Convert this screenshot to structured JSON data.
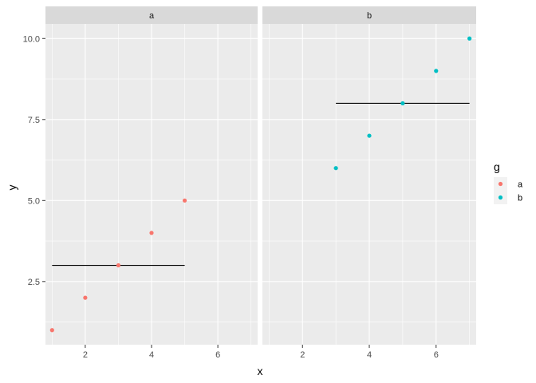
{
  "chart_data": {
    "type": "scatter",
    "xlabel": "x",
    "ylabel": "y",
    "xlim": [
      0.8,
      7.2
    ],
    "ylim": [
      0.55,
      10.45
    ],
    "x_ticks": [
      2,
      4,
      6
    ],
    "y_ticks": [
      2.5,
      5.0,
      7.5,
      10.0
    ],
    "y_tick_labels": [
      "2.5",
      "5.0",
      "7.5",
      "10.0"
    ],
    "grid": true,
    "legend": {
      "title": "g",
      "placement": "right",
      "entries": [
        {
          "label": "a",
          "color": "#F8766D"
        },
        {
          "label": "b",
          "color": "#00BFC4"
        }
      ]
    },
    "panels": [
      {
        "strip": "a",
        "color": "#F8766D",
        "points": [
          {
            "x": 1,
            "y": 1
          },
          {
            "x": 2,
            "y": 2
          },
          {
            "x": 3,
            "y": 3
          },
          {
            "x": 4,
            "y": 4
          },
          {
            "x": 5,
            "y": 5
          }
        ],
        "hline": {
          "y": 3,
          "xmin": 1,
          "xmax": 5
        }
      },
      {
        "strip": "b",
        "color": "#00BFC4",
        "points": [
          {
            "x": 3,
            "y": 6
          },
          {
            "x": 4,
            "y": 7
          },
          {
            "x": 5,
            "y": 8
          },
          {
            "x": 6,
            "y": 9
          },
          {
            "x": 7,
            "y": 10
          }
        ],
        "hline": {
          "y": 8,
          "xmin": 3,
          "xmax": 7
        }
      }
    ]
  }
}
